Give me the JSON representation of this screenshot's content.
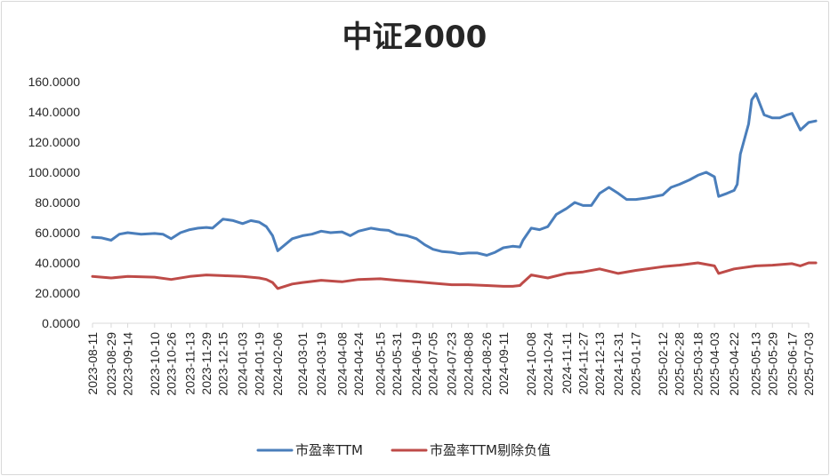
{
  "chart_data": {
    "type": "line",
    "title": "中证2000",
    "xlabel": "",
    "ylabel": "",
    "ylim": [
      0,
      160
    ],
    "ytick_step": 20,
    "ytick_labels": [
      "0.0000",
      "20.0000",
      "40.0000",
      "60.0000",
      "80.0000",
      "100.0000",
      "120.0000",
      "140.0000",
      "160.0000"
    ],
    "x_tick_labels": [
      "2023-08-11",
      "2023-08-29",
      "2023-09-14",
      "2023-10-10",
      "2023-10-26",
      "2023-11-13",
      "2023-11-29",
      "2023-12-15",
      "2024-01-03",
      "2024-01-19",
      "2024-02-06",
      "2024-03-01",
      "2024-03-19",
      "2024-04-08",
      "2024-04-24",
      "2024-05-15",
      "2024-05-31",
      "2024-06-19",
      "2024-07-05",
      "2024-07-23",
      "2024-08-08",
      "2024-08-26",
      "2024-09-11",
      "2024-10-08",
      "2024-10-24",
      "2024-11-11",
      "2024-11-27",
      "2024-12-13",
      "2024-12-31",
      "2025-01-17",
      "2025-02-12",
      "2025-02-28",
      "2025-03-18",
      "2025-04-03",
      "2025-04-22",
      "2025-05-13",
      "2025-05-29",
      "2025-06-17",
      "2025-07-03"
    ],
    "grid": false,
    "legend_position": "bottom",
    "series": [
      {
        "name": "市盈率TTM",
        "color": "#4a7ebb",
        "x": [
          "2023-08-11",
          "2023-08-20",
          "2023-08-29",
          "2023-09-06",
          "2023-09-14",
          "2023-09-27",
          "2023-10-10",
          "2023-10-18",
          "2023-10-26",
          "2023-11-04",
          "2023-11-13",
          "2023-11-21",
          "2023-11-29",
          "2023-12-05",
          "2023-12-15",
          "2023-12-25",
          "2024-01-03",
          "2024-01-11",
          "2024-01-19",
          "2024-01-26",
          "2024-02-01",
          "2024-02-06",
          "2024-02-20",
          "2024-03-01",
          "2024-03-10",
          "2024-03-19",
          "2024-03-28",
          "2024-04-08",
          "2024-04-16",
          "2024-04-24",
          "2024-05-06",
          "2024-05-15",
          "2024-05-23",
          "2024-05-31",
          "2024-06-10",
          "2024-06-19",
          "2024-06-27",
          "2024-07-05",
          "2024-07-14",
          "2024-07-23",
          "2024-07-31",
          "2024-08-08",
          "2024-08-17",
          "2024-08-26",
          "2024-09-03",
          "2024-09-11",
          "2024-09-20",
          "2024-09-27",
          "2024-09-30",
          "2024-10-08",
          "2024-10-16",
          "2024-10-24",
          "2024-11-01",
          "2024-11-11",
          "2024-11-19",
          "2024-11-27",
          "2024-12-05",
          "2024-12-13",
          "2024-12-22",
          "2024-12-31",
          "2025-01-08",
          "2025-01-17",
          "2025-01-28",
          "2025-02-12",
          "2025-02-20",
          "2025-02-28",
          "2025-03-10",
          "2025-03-18",
          "2025-03-26",
          "2025-04-03",
          "2025-04-07",
          "2025-04-15",
          "2025-04-22",
          "2025-04-25",
          "2025-04-28",
          "2025-05-06",
          "2025-05-09",
          "2025-05-13",
          "2025-05-21",
          "2025-05-29",
          "2025-06-05",
          "2025-06-12",
          "2025-06-17",
          "2025-06-25",
          "2025-07-03",
          "2025-07-10"
        ],
        "values": [
          57,
          56.5,
          55,
          59,
          60,
          59,
          59.5,
          59,
          56,
          60,
          62,
          63,
          63.5,
          63,
          69,
          68,
          66,
          68,
          67,
          64,
          58,
          48,
          56,
          58,
          59,
          61,
          60,
          60.5,
          58,
          61,
          63,
          62,
          61.5,
          59,
          58,
          56,
          52,
          49,
          47.5,
          47,
          46,
          46.5,
          46.5,
          45,
          47,
          50,
          51,
          50.5,
          55,
          63,
          62,
          64,
          72,
          76,
          80,
          78,
          78,
          86,
          90,
          86,
          82,
          82,
          83,
          85,
          90,
          92,
          95,
          98,
          100,
          97,
          84,
          86,
          88,
          92,
          112,
          132,
          148,
          152,
          138,
          136,
          136,
          138,
          139,
          128,
          133,
          134
        ]
      },
      {
        "name": "市盈率TTM剔除负值",
        "color": "#be4b48",
        "x": [
          "2023-08-11",
          "2023-08-29",
          "2023-09-14",
          "2023-10-10",
          "2023-10-26",
          "2023-11-13",
          "2023-11-29",
          "2023-12-15",
          "2024-01-03",
          "2024-01-19",
          "2024-01-26",
          "2024-02-01",
          "2024-02-06",
          "2024-02-20",
          "2024-03-01",
          "2024-03-19",
          "2024-04-08",
          "2024-04-24",
          "2024-05-15",
          "2024-05-31",
          "2024-06-19",
          "2024-07-05",
          "2024-07-23",
          "2024-08-08",
          "2024-08-26",
          "2024-09-11",
          "2024-09-20",
          "2024-09-27",
          "2024-09-30",
          "2024-10-08",
          "2024-10-24",
          "2024-11-11",
          "2024-11-27",
          "2024-12-13",
          "2024-12-31",
          "2025-01-17",
          "2025-02-12",
          "2025-02-28",
          "2025-03-18",
          "2025-04-03",
          "2025-04-07",
          "2025-04-22",
          "2025-05-13",
          "2025-05-29",
          "2025-06-17",
          "2025-06-25",
          "2025-07-03",
          "2025-07-10"
        ],
        "values": [
          31,
          30,
          31,
          30.5,
          29,
          31,
          32,
          31.5,
          31,
          30,
          29,
          27,
          23,
          26,
          27,
          28.5,
          27.5,
          29,
          29.5,
          28.5,
          27.5,
          26.5,
          25.5,
          25.5,
          25,
          24.5,
          24.5,
          25,
          27,
          32,
          30,
          33,
          34,
          36,
          33,
          35,
          37.5,
          38.5,
          40,
          38,
          33,
          36,
          38,
          38.5,
          39.5,
          38,
          40,
          40
        ]
      }
    ]
  }
}
